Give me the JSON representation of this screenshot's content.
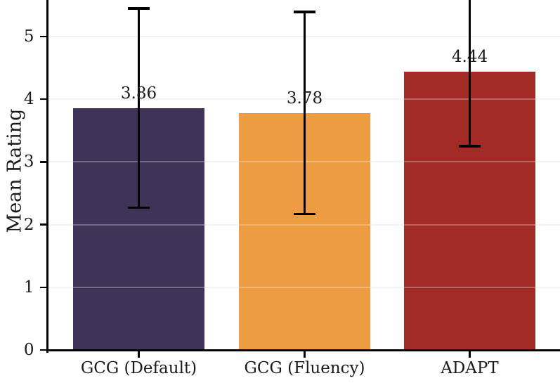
{
  "figure": {
    "background": "#ffffff"
  },
  "chart_data": {
    "type": "bar",
    "title": "",
    "xlabel": "",
    "ylabel": "Mean Rating",
    "categories": [
      "GCG (Default)",
      "GCG (Fluency)",
      "ADAPT"
    ],
    "values": [
      3.86,
      3.78,
      4.44
    ],
    "errors": [
      1.59,
      1.61,
      1.19
    ],
    "value_labels": [
      "3.86",
      "3.78",
      "4.44"
    ],
    "bar_colors": [
      "#3f3457",
      "#ed9c42",
      "#a32b26"
    ],
    "error_bar_color": "#000000",
    "ytick_labels": [
      "0",
      "1",
      "2",
      "3",
      "4",
      "5"
    ],
    "ytick_values": [
      0,
      1,
      2,
      3,
      4,
      5
    ],
    "ylim": [
      0,
      5.58
    ],
    "grid": true,
    "grid_color": "#efefef",
    "grid_over_bar_color": "rgba(255,255,255,0.28)",
    "axis_color": "#000000",
    "legend": null,
    "notes": "error bar of ADAPT is clipped at top of plot"
  }
}
